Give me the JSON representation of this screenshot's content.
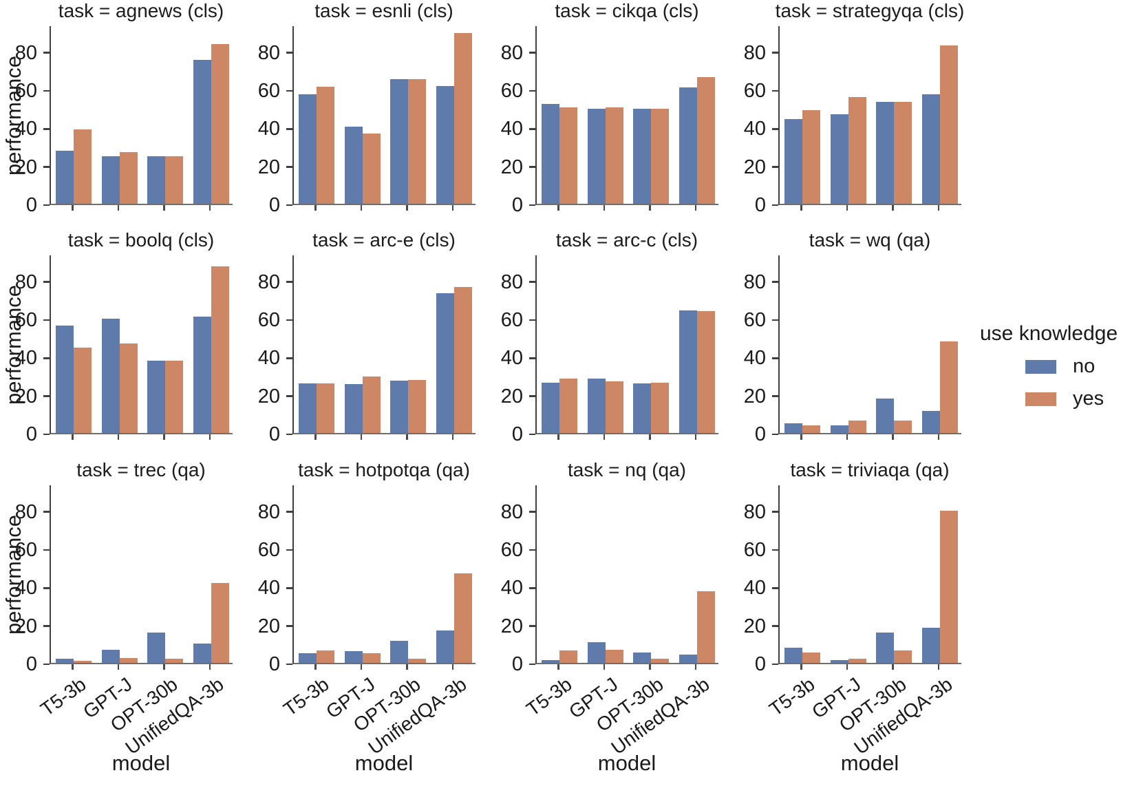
{
  "chart_data": {
    "type": "bar",
    "layout": {
      "rows": 3,
      "cols": 4,
      "legend_position": "right-middle",
      "grid": false
    },
    "categories": [
      "T5-3b",
      "GPT-J",
      "OPT-30b",
      "UnifiedQA-3b"
    ],
    "xlabel": "model",
    "ylabel": "performance",
    "yticks": [
      0,
      20,
      40,
      60,
      80
    ],
    "ylim": [
      0,
      94
    ],
    "legend": {
      "title": "use knowledge",
      "entries": [
        "no",
        "yes"
      ]
    },
    "series_colors": {
      "no": "#5e7bab",
      "yes": "#cd8764"
    },
    "facets": [
      {
        "title": "task = agnews (cls)",
        "series": [
          {
            "name": "no",
            "values": [
              28,
              25,
              25,
              75.5
            ]
          },
          {
            "name": "yes",
            "values": [
              39,
              27,
              25,
              84
            ]
          }
        ]
      },
      {
        "title": "task = esnli (cls)",
        "series": [
          {
            "name": "no",
            "values": [
              57.5,
              40.5,
              65.5,
              62
            ]
          },
          {
            "name": "yes",
            "values": [
              61.5,
              37,
              65.5,
              89.5
            ]
          }
        ]
      },
      {
        "title": "task = cikqa (cls)",
        "series": [
          {
            "name": "no",
            "values": [
              52.5,
              50,
              50,
              61
            ]
          },
          {
            "name": "yes",
            "values": [
              50.5,
              50.5,
              50,
              66.5
            ]
          }
        ]
      },
      {
        "title": "task = strategyqa (cls)",
        "series": [
          {
            "name": "no",
            "values": [
              44.5,
              47,
              53.5,
              57.5
            ]
          },
          {
            "name": "yes",
            "values": [
              49,
              56,
              53.5,
              83
            ]
          }
        ]
      },
      {
        "title": "task = boolq (cls)",
        "series": [
          {
            "name": "no",
            "values": [
              56.5,
              60,
              38,
              61
            ]
          },
          {
            "name": "yes",
            "values": [
              45,
              47,
              38,
              87.5
            ]
          }
        ]
      },
      {
        "title": "task = arc-e (cls)",
        "series": [
          {
            "name": "no",
            "values": [
              26,
              25.5,
              27.5,
              73.5
            ]
          },
          {
            "name": "yes",
            "values": [
              26,
              29.5,
              28,
              76.5
            ]
          }
        ]
      },
      {
        "title": "task = arc-c (cls)",
        "series": [
          {
            "name": "no",
            "values": [
              26.5,
              28.5,
              26,
              64.5
            ]
          },
          {
            "name": "yes",
            "values": [
              28.5,
              27,
              26.5,
              64
            ]
          }
        ]
      },
      {
        "title": "task = wq (qa)",
        "series": [
          {
            "name": "no",
            "values": [
              5,
              4,
              18,
              11.5
            ]
          },
          {
            "name": "yes",
            "values": [
              4,
              6.5,
              6.5,
              48
            ]
          }
        ]
      },
      {
        "title": "task = trec (qa)",
        "series": [
          {
            "name": "no",
            "values": [
              2,
              7,
              16,
              10
            ]
          },
          {
            "name": "yes",
            "values": [
              1,
              2.5,
              2,
              42
            ]
          }
        ]
      },
      {
        "title": "task = hotpotqa (qa)",
        "series": [
          {
            "name": "no",
            "values": [
              5,
              6,
              11.5,
              17
            ]
          },
          {
            "name": "yes",
            "values": [
              6.5,
              5,
              2,
              47
            ]
          }
        ]
      },
      {
        "title": "task = nq (qa)",
        "series": [
          {
            "name": "no",
            "values": [
              1.5,
              11,
              5.5,
              4.5
            ]
          },
          {
            "name": "yes",
            "values": [
              6.5,
              7,
              2,
              37.5
            ]
          }
        ]
      },
      {
        "title": "task = triviaqa (qa)",
        "series": [
          {
            "name": "no",
            "values": [
              8,
              1.5,
              16,
              18.5
            ]
          },
          {
            "name": "yes",
            "values": [
              5.5,
              2,
              6.5,
              80
            ]
          }
        ]
      }
    ]
  }
}
